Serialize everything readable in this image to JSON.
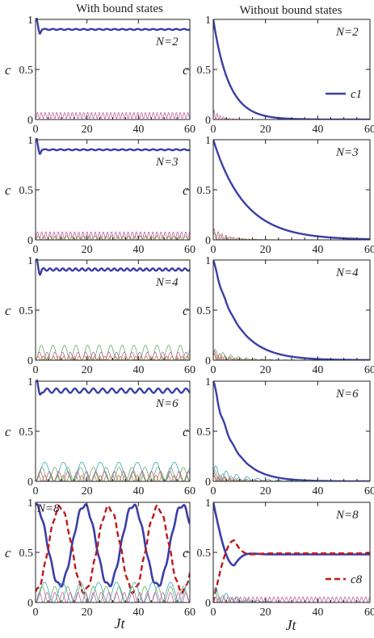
{
  "columns": [
    "With bound states",
    "Without bound states"
  ],
  "x_axis_label": "Jt",
  "y_axis_label": "c",
  "chart_data": [
    {
      "type": "line",
      "column": "with",
      "panel_label": "N=2",
      "xlim": [
        0,
        60
      ],
      "ylim": [
        0,
        1
      ],
      "xticks": [
        "0",
        "20",
        "40",
        "60"
      ],
      "yticks": [
        "0",
        "0.5",
        "1"
      ],
      "series": [
        {
          "role": "c1",
          "color": "#3b3ea8",
          "values": {
            "model": "bound",
            "level": 0.9,
            "amp": 0.005,
            "period": 3,
            "dip": 0.1
          }
        },
        {
          "role": "other",
          "color": "#c060a0",
          "values": {
            "model": "osc",
            "level": 0.04,
            "amp": 0.03,
            "period": 1.5
          }
        }
      ]
    },
    {
      "type": "line",
      "column": "without",
      "panel_label": "N=2",
      "xlim": [
        0,
        60
      ],
      "ylim": [
        0,
        1
      ],
      "xticks": [
        "0",
        "20",
        "40",
        "60"
      ],
      "yticks": [
        "0",
        "0.5",
        "1"
      ],
      "legend": {
        "label": "c1",
        "sub": "1",
        "position": "right"
      },
      "series": [
        {
          "name": "c1",
          "role": "c1",
          "color": "#3b3ea8",
          "values": {
            "model": "decay",
            "tau": 6.0
          }
        },
        {
          "role": "other",
          "color": "#c060a0",
          "values": {
            "model": "damped",
            "amp": 0.1,
            "period": 1.2,
            "tau": 3
          }
        }
      ]
    },
    {
      "type": "line",
      "column": "with",
      "panel_label": "N=3",
      "xlim": [
        0,
        60
      ],
      "ylim": [
        0,
        1
      ],
      "xticks": [
        "0",
        "20",
        "40",
        "60"
      ],
      "yticks": [
        "0",
        "0.5",
        "1"
      ],
      "series": [
        {
          "role": "c1",
          "color": "#3b3ea8",
          "values": {
            "model": "bound",
            "level": 0.9,
            "amp": 0.005,
            "period": 3,
            "dip": 0.1
          }
        },
        {
          "role": "other",
          "color": "#c060a0",
          "values": {
            "model": "osc",
            "level": 0.045,
            "amp": 0.035,
            "period": 1.6
          }
        },
        {
          "role": "other",
          "color": "#8a9a40",
          "values": {
            "model": "osc",
            "level": 0.02,
            "amp": 0.02,
            "period": 2.2
          }
        }
      ]
    },
    {
      "type": "line",
      "column": "without",
      "panel_label": "N=3",
      "xlim": [
        0,
        60
      ],
      "ylim": [
        0,
        1
      ],
      "xticks": [
        "0",
        "20",
        "40",
        "60"
      ],
      "yticks": [
        "0",
        "0.5",
        "1"
      ],
      "series": [
        {
          "role": "c1",
          "color": "#3b3ea8",
          "values": {
            "model": "decay",
            "tau": 12.0
          }
        },
        {
          "role": "other",
          "color": "#c060a0",
          "values": {
            "model": "damped",
            "amp": 0.12,
            "period": 1.5,
            "tau": 5
          }
        },
        {
          "role": "other",
          "color": "#8a9a40",
          "values": {
            "model": "damped",
            "amp": 0.08,
            "period": 2.2,
            "tau": 6
          }
        }
      ]
    },
    {
      "type": "line",
      "column": "with",
      "panel_label": "N=4",
      "xlim": [
        0,
        60
      ],
      "ylim": [
        0,
        1
      ],
      "xticks": [
        "0",
        "20",
        "40",
        "60"
      ],
      "yticks": [
        "0",
        "0.5",
        "1"
      ],
      "series": [
        {
          "role": "c1",
          "color": "#3b3ea8",
          "values": {
            "model": "bound",
            "level": 0.905,
            "amp": 0.012,
            "period": 2.5,
            "dip": 0.12
          }
        },
        {
          "role": "other",
          "color": "#60b060",
          "values": {
            "model": "osc",
            "level": 0.075,
            "amp": 0.075,
            "period": 4.5
          }
        },
        {
          "role": "other",
          "color": "#c060a0",
          "values": {
            "model": "osc",
            "level": 0.04,
            "amp": 0.04,
            "period": 3
          }
        },
        {
          "role": "other",
          "color": "#b08040",
          "values": {
            "model": "osc",
            "level": 0.02,
            "amp": 0.02,
            "period": 2
          }
        }
      ]
    },
    {
      "type": "line",
      "column": "without",
      "panel_label": "N=4",
      "xlim": [
        0,
        60
      ],
      "ylim": [
        0,
        1
      ],
      "xticks": [
        "0",
        "20",
        "40",
        "60"
      ],
      "yticks": [
        "0",
        "0.5",
        "1"
      ],
      "series": [
        {
          "role": "c1",
          "color": "#3b3ea8",
          "values": {
            "model": "decay",
            "tau": 9.0,
            "wiggle": 0.02
          }
        },
        {
          "role": "other",
          "color": "#60b060",
          "values": {
            "model": "damped",
            "amp": 0.12,
            "period": 3,
            "tau": 8
          }
        },
        {
          "role": "other",
          "color": "#c060a0",
          "values": {
            "model": "damped",
            "amp": 0.1,
            "period": 2,
            "tau": 6
          }
        },
        {
          "role": "other",
          "color": "#b08040",
          "values": {
            "model": "damped",
            "amp": 0.07,
            "period": 1.5,
            "tau": 5
          }
        }
      ]
    },
    {
      "type": "line",
      "column": "with",
      "panel_label": "N=6",
      "xlim": [
        0,
        60
      ],
      "ylim": [
        0,
        1
      ],
      "xticks": [
        "0",
        "20",
        "40",
        "60"
      ],
      "yticks": [
        "0",
        "0.5",
        "1"
      ],
      "series": [
        {
          "role": "c1",
          "color": "#3b3ea8",
          "values": {
            "model": "bound",
            "level": 0.905,
            "amp": 0.022,
            "period": 3.6,
            "dip": 0.1
          }
        },
        {
          "role": "other",
          "color": "#3fa0c0",
          "values": {
            "model": "osc",
            "level": 0.095,
            "amp": 0.095,
            "period": 7.2
          }
        },
        {
          "role": "other",
          "color": "#60b060",
          "values": {
            "model": "osc",
            "level": 0.07,
            "amp": 0.07,
            "period": 5
          }
        },
        {
          "role": "other",
          "color": "#c060a0",
          "values": {
            "model": "osc",
            "level": 0.05,
            "amp": 0.05,
            "period": 3.6
          }
        },
        {
          "role": "other",
          "color": "#b08040",
          "values": {
            "model": "osc",
            "level": 0.03,
            "amp": 0.03,
            "period": 2.4
          }
        }
      ]
    },
    {
      "type": "line",
      "column": "without",
      "panel_label": "N=6",
      "xlim": [
        0,
        60
      ],
      "ylim": [
        0,
        1
      ],
      "xticks": [
        "0",
        "20",
        "40",
        "60"
      ],
      "yticks": [
        "0",
        "0.5",
        "1"
      ],
      "series": [
        {
          "role": "c1",
          "color": "#3b3ea8",
          "values": {
            "model": "decay",
            "tau": 7.5,
            "wiggle": 0.04
          }
        },
        {
          "role": "other",
          "color": "#3fa0c0",
          "values": {
            "model": "damped",
            "amp": 0.17,
            "period": 4,
            "tau": 10
          }
        },
        {
          "role": "other",
          "color": "#60b060",
          "values": {
            "model": "damped",
            "amp": 0.12,
            "period": 3,
            "tau": 8
          }
        },
        {
          "role": "other",
          "color": "#c060a0",
          "values": {
            "model": "damped",
            "amp": 0.09,
            "period": 2,
            "tau": 7
          }
        },
        {
          "role": "other",
          "color": "#b08040",
          "values": {
            "model": "damped",
            "amp": 0.06,
            "period": 1.5,
            "tau": 6
          }
        }
      ]
    },
    {
      "type": "line",
      "column": "with",
      "panel_label": "N=8",
      "xlim": [
        0,
        60
      ],
      "ylim": [
        0,
        1
      ],
      "xticks": [
        "0",
        "20",
        "40",
        "60"
      ],
      "yticks": [
        "0",
        "0.5",
        "1"
      ],
      "series": [
        {
          "role": "c1",
          "color": "#3b3ea8",
          "width": 2.6,
          "values": {
            "model": "swap",
            "base": 0.57,
            "amp": 0.4,
            "period": 19,
            "phase": 0
          }
        },
        {
          "role": "c8",
          "color": "#c01818",
          "dash": "7,4",
          "width": 2.4,
          "values": {
            "model": "swap",
            "base": 0.53,
            "amp": 0.42,
            "period": 19,
            "phase": 3.14159
          }
        },
        {
          "role": "other",
          "color": "#3fa0c0",
          "values": {
            "model": "osc",
            "level": 0.1,
            "amp": 0.1,
            "period": 7
          }
        },
        {
          "role": "other",
          "color": "#60b060",
          "values": {
            "model": "osc",
            "level": 0.08,
            "amp": 0.08,
            "period": 5
          }
        },
        {
          "role": "other",
          "color": "#c060a0",
          "values": {
            "model": "osc",
            "level": 0.05,
            "amp": 0.05,
            "period": 3
          }
        }
      ]
    },
    {
      "type": "line",
      "column": "without",
      "panel_label": "N=8",
      "xlim": [
        0,
        60
      ],
      "ylim": [
        0,
        1
      ],
      "xticks": [
        "0",
        "20",
        "40",
        "60"
      ],
      "yticks": [
        "0",
        "0.5",
        "1"
      ],
      "legend": {
        "label": "c8",
        "sub": "8",
        "position": "right"
      },
      "series": [
        {
          "role": "c1",
          "color": "#3b3ea8",
          "width": 2.6,
          "values": {
            "model": "relax",
            "start": 1.0,
            "final": 0.48,
            "min": 0.37,
            "tmin": 8
          }
        },
        {
          "name": "c8",
          "role": "c8",
          "color": "#c01818",
          "dash": "7,4",
          "width": 2.4,
          "values": {
            "model": "rise",
            "final": 0.49,
            "peak": 0.62,
            "tpeak": 8
          }
        },
        {
          "role": "other",
          "color": "#3fa0c0",
          "values": {
            "model": "damped",
            "amp": 0.17,
            "period": 4,
            "tau": 8
          }
        },
        {
          "role": "other",
          "color": "#60b060",
          "values": {
            "model": "damped",
            "amp": 0.12,
            "period": 3,
            "tau": 7
          }
        },
        {
          "role": "other",
          "color": "#c060a0",
          "values": {
            "model": "osc",
            "level": 0.03,
            "amp": 0.025,
            "period": 1.6
          }
        }
      ]
    }
  ]
}
